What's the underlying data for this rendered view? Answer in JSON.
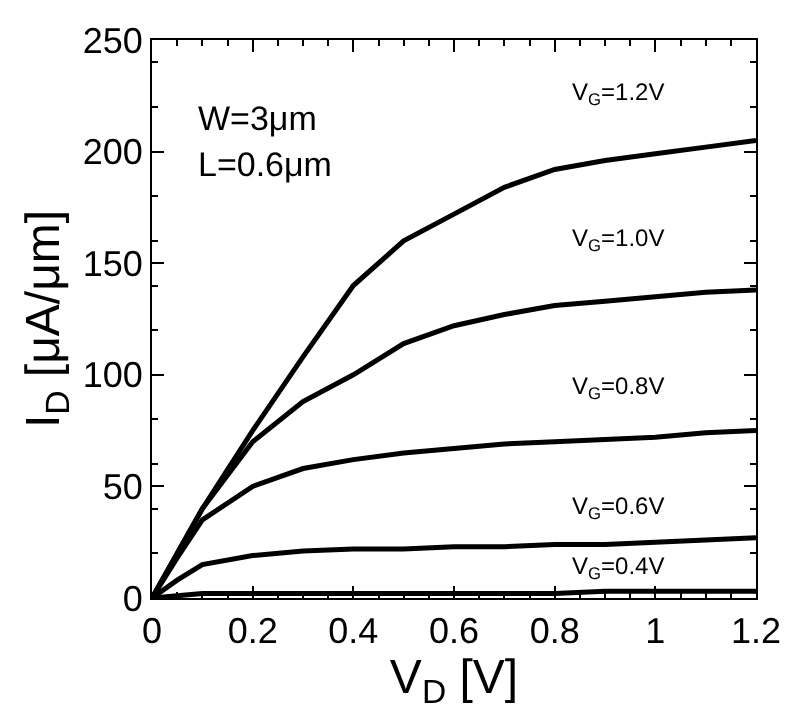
{
  "chart_data": {
    "type": "line",
    "xlabel": "V$_{D}$ [V]",
    "ylabel": "I$_{D}$ [μA/μm]",
    "x": [
      0,
      0.05,
      0.1,
      0.2,
      0.3,
      0.4,
      0.5,
      0.6,
      0.7,
      0.8,
      0.9,
      1.0,
      1.1,
      1.2
    ],
    "series": [
      {
        "color": "#000000",
        "values": [
          0,
          20,
          40,
          75,
          108,
          140,
          160,
          172,
          184,
          192,
          196,
          199,
          202,
          205
        ]
      },
      {
        "color": "#000000",
        "values": [
          0,
          20,
          40,
          70,
          88,
          100,
          114,
          122,
          127,
          131,
          133,
          135,
          137,
          138
        ]
      },
      {
        "color": "#000000",
        "values": [
          0,
          18,
          35,
          50,
          58,
          62,
          65,
          67,
          69,
          70,
          71,
          72,
          74,
          75
        ]
      },
      {
        "color": "#000000",
        "values": [
          0,
          8,
          15,
          19,
          21,
          22,
          22,
          23,
          23,
          24,
          24,
          25,
          26,
          27
        ]
      },
      {
        "color": "#000000",
        "values": [
          0,
          1,
          2,
          2,
          2,
          2,
          2,
          2,
          2,
          2,
          3,
          3,
          3,
          3
        ]
      }
    ],
    "xlim": [
      0,
      1.2
    ],
    "ylim": [
      0,
      250
    ],
    "xticks": [
      0,
      0.2,
      0.4,
      0.6,
      0.8,
      1,
      1.2
    ],
    "yticks": [
      0,
      50,
      100,
      150,
      200,
      250
    ],
    "marker": "none",
    "line_style": "solid",
    "annotations": [
      "W=3μm",
      "L=0.6μm",
      "V$_{G}$=1.2V",
      "V$_{G}$=1.0V",
      "V$_{G}$=0.8V",
      "V$_{G}$=0.6V",
      "V$_{G}$=0.4V"
    ]
  }
}
